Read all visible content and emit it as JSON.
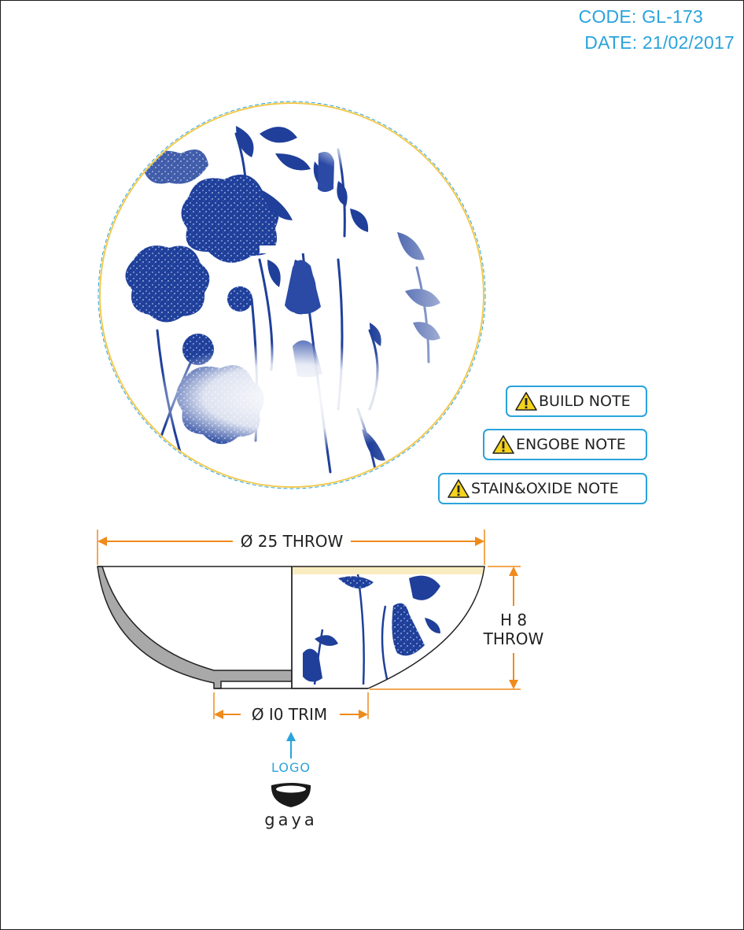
{
  "header": {
    "code": "CODE: GL-173",
    "date": "DATE: 21/02/2017"
  },
  "notes": [
    {
      "label": "BUILD NOTE"
    },
    {
      "label": "ENGOBE NOTE"
    },
    {
      "label": "STAIN&OXIDE NOTE"
    }
  ],
  "dimensions": {
    "diameter": "Ø 25 THROW",
    "height_line1": "H 8",
    "height_line2": "THROW",
    "foot": "Ø I0 TRIM"
  },
  "logo": {
    "label": "LOGO",
    "brand": "gaya"
  },
  "colors": {
    "accent_blue": "#2aa3dc",
    "dimension_orange": "#f08a1c",
    "floral_blue": "#1f3f9a",
    "section_gray": "#a9a9a9",
    "rim_yellow": "#f2c94c"
  },
  "icons": [
    "warning-icon",
    "up-arrow-icon",
    "gaya-bowl-logo"
  ]
}
